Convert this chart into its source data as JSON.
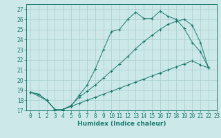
{
  "title": "",
  "xlabel": "Humidex (Indice chaleur)",
  "ylabel": "",
  "bg_color": "#cce8e8",
  "line_color": "#1a7a6e",
  "grid_color": "#aacece",
  "xlim": [
    -0.5,
    23
  ],
  "ylim": [
    17,
    27.5
  ],
  "yticks": [
    17,
    18,
    19,
    20,
    21,
    22,
    23,
    24,
    25,
    26,
    27
  ],
  "xticks": [
    0,
    1,
    2,
    3,
    4,
    5,
    6,
    7,
    8,
    9,
    10,
    11,
    12,
    13,
    14,
    15,
    16,
    17,
    18,
    19,
    20,
    21,
    22,
    23
  ],
  "line1_x": [
    0,
    1,
    2,
    3,
    4,
    5,
    6,
    7,
    8,
    9,
    10,
    11,
    12,
    13,
    14,
    15,
    16,
    17,
    18,
    19,
    20,
    21,
    22
  ],
  "line1_y": [
    18.8,
    18.6,
    18.0,
    17.1,
    17.1,
    17.4,
    18.5,
    19.5,
    21.1,
    23.0,
    24.8,
    25.0,
    26.0,
    26.7,
    26.1,
    26.1,
    26.8,
    26.3,
    26.0,
    25.1,
    23.7,
    22.8,
    21.2
  ],
  "line2_x": [
    0,
    2,
    3,
    4,
    5,
    6,
    7,
    8,
    9,
    10,
    11,
    12,
    13,
    14,
    15,
    16,
    17,
    18,
    19,
    20,
    21,
    22
  ],
  "line2_y": [
    18.8,
    18.0,
    17.1,
    17.1,
    17.5,
    18.3,
    18.9,
    19.5,
    20.2,
    20.9,
    21.6,
    22.3,
    23.1,
    23.8,
    24.4,
    25.0,
    25.5,
    25.8,
    26.0,
    25.4,
    23.7,
    21.2
  ],
  "line3_x": [
    0,
    1,
    2,
    3,
    4,
    5,
    6,
    7,
    8,
    9,
    10,
    11,
    12,
    13,
    14,
    15,
    16,
    17,
    18,
    19,
    20,
    21,
    22
  ],
  "line3_y": [
    18.8,
    18.6,
    18.0,
    17.1,
    17.1,
    17.4,
    17.7,
    18.0,
    18.3,
    18.6,
    18.9,
    19.2,
    19.5,
    19.8,
    20.1,
    20.4,
    20.7,
    21.0,
    21.3,
    21.6,
    21.9,
    21.5,
    21.2
  ]
}
